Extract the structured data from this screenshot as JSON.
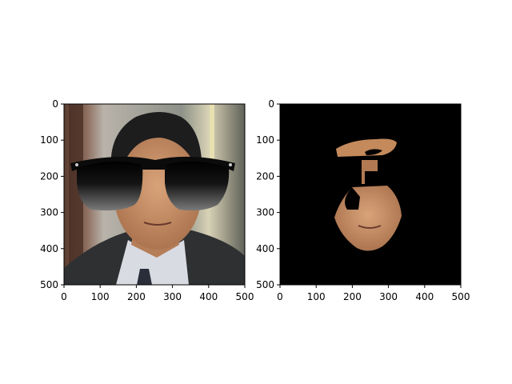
{
  "chart_data": [
    {
      "type": "image",
      "title": "",
      "xlabel": "",
      "ylabel": "",
      "xlim": [
        0,
        500
      ],
      "ylim": [
        500,
        0
      ],
      "xticks": [
        "0",
        "100",
        "200",
        "300",
        "400",
        "500"
      ],
      "yticks": [
        "0",
        "100",
        "200",
        "300",
        "400",
        "500"
      ],
      "image_content": "photo of a man in a dark suit wearing black sunglasses overlay",
      "colors": {
        "background": "#ffffff",
        "frame": "#000000"
      }
    },
    {
      "type": "image",
      "title": "",
      "xlabel": "",
      "ylabel": "",
      "xlim": [
        0,
        500
      ],
      "ylim": [
        500,
        0
      ],
      "xticks": [
        "0",
        "100",
        "200",
        "300",
        "400",
        "500"
      ],
      "yticks": [
        "0",
        "100",
        "200",
        "300",
        "400",
        "500"
      ],
      "image_content": "segmented facial skin region on a black background",
      "colors": {
        "background": "#000000",
        "skin": "#c48a5c"
      }
    }
  ]
}
